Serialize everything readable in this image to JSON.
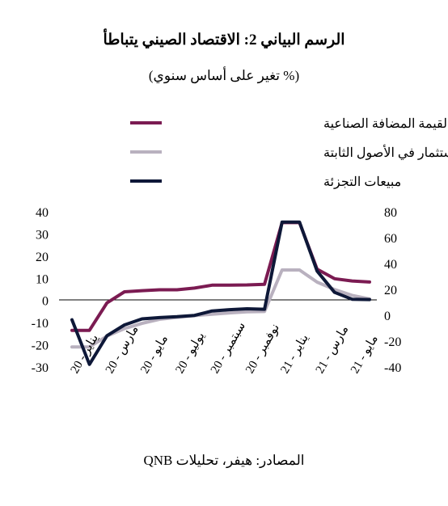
{
  "title": "الرسم البياني 2: الاقتصاد الصيني يتباطأ",
  "subtitle": "(% تغير على أساس سنوي)",
  "source": "المصادر: هيفر، تحليلات QNB",
  "colors": {
    "industrial": "#7b1b52",
    "fixed_assets": "#b9b1bf",
    "retail": "#0e1838"
  },
  "chart_data": {
    "type": "line",
    "legend_position": "top-right",
    "grid": false,
    "x": [
      "يناير-20",
      "فبراير-20",
      "مارس-20",
      "أبريل-20",
      "مايو-20",
      "يونيو-20",
      "يوليو-20",
      "أغسطس-20",
      "سبتمبر-20",
      "أكتوبر-20",
      "نوفمبر-20",
      "ديسمبر-20",
      "يناير-21",
      "فبراير-21",
      "مارس-21",
      "أبريل-21",
      "مايو-21",
      "يونيو-21"
    ],
    "x_tick_labels": [
      "يناير - 20",
      "مارس - 20",
      "مايو - 20",
      "يوليو - 20",
      "سبتمبر - 20",
      "نوفمبر - 20",
      "يناير - 21",
      "مارس - 21",
      "مايو - 21"
    ],
    "left_axis": {
      "ylim": [
        -30,
        40
      ],
      "ticks": [
        "40",
        "30",
        "20",
        "10",
        "0",
        "-10",
        "-20",
        "-30"
      ]
    },
    "right_axis": {
      "ylim": [
        -40,
        80
      ],
      "ticks": [
        "80",
        "60",
        "40",
        "20",
        "0",
        "-20",
        "-40"
      ]
    },
    "series": [
      {
        "name": "مؤشر القيمة المضافة الصناعية",
        "axis": "left",
        "color": "#7b1b52",
        "values": [
          -13.5,
          -13.5,
          -1.1,
          3.9,
          4.4,
          4.8,
          4.8,
          5.6,
          6.9,
          6.9,
          7.0,
          7.3,
          35.1,
          35.1,
          14.1,
          9.8,
          8.8,
          8.3
        ]
      },
      {
        "name": "الاستثمار في الأصول الثابتة",
        "axis": "right",
        "color": "#b9b1bf",
        "values": [
          -24.5,
          -24.5,
          -16.1,
          -10.3,
          -6.3,
          -3.1,
          -1.6,
          -0.3,
          0.8,
          1.8,
          2.6,
          2.9,
          35.0,
          35.0,
          25.6,
          19.9,
          15.4,
          12.6
        ]
      },
      {
        "name": "مبيعات التجزئة",
        "axis": "right",
        "color": "#0e1838",
        "values": [
          -3.5,
          -38.0,
          -15.8,
          -7.5,
          -2.8,
          -1.8,
          -1.1,
          -0.1,
          3.3,
          4.3,
          5.0,
          4.6,
          72.0,
          72.0,
          34.2,
          17.7,
          12.4,
          12.1
        ]
      }
    ]
  }
}
